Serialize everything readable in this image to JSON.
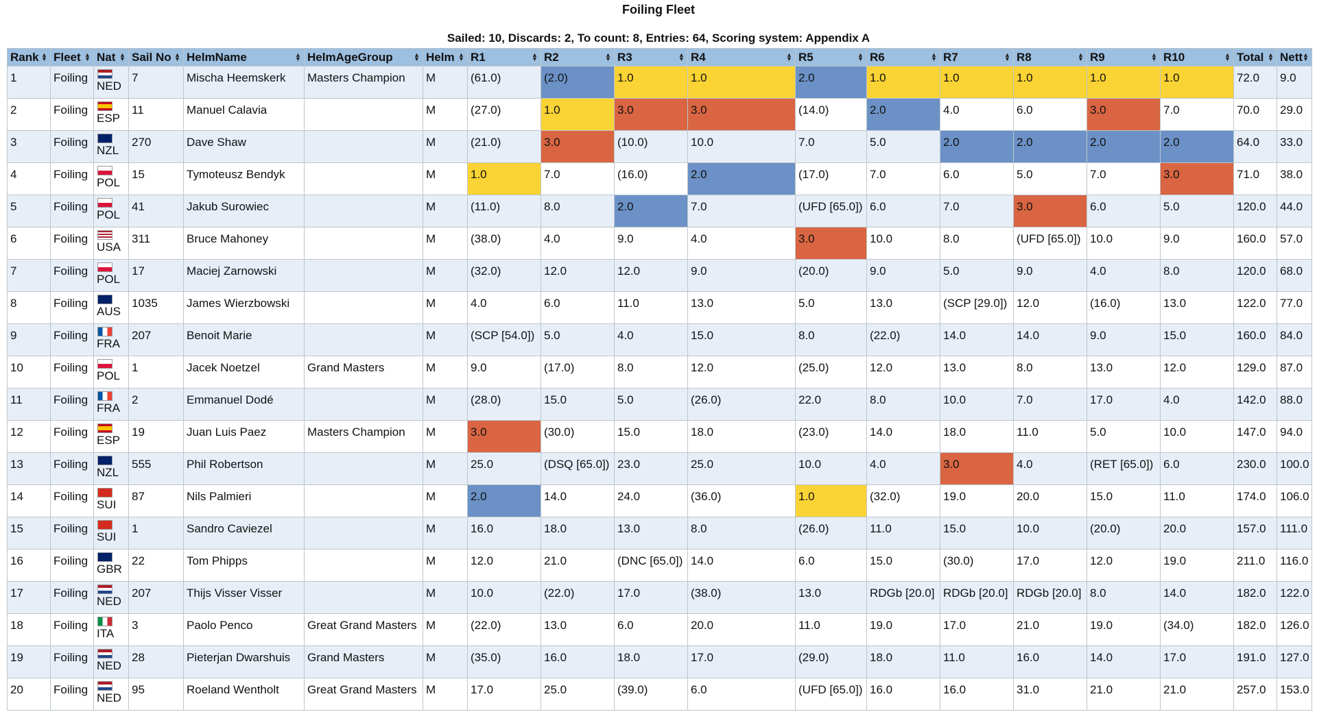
{
  "title": "Foiling Fleet",
  "subtitle": "Sailed: 10, Discards: 2, To count: 8, Entries: 64, Scoring system: Appendix A",
  "colors": {
    "header_bg": "#9dbfe0",
    "row_alt": "#e7eef8",
    "first": "#fad334",
    "second": "#6b91c6",
    "third": "#d96542"
  },
  "columns": [
    "Rank",
    "Fleet",
    "Nat",
    "Sail No",
    "HelmName",
    "HelmAgeGroup",
    "Helm",
    "R1",
    "R2",
    "R3",
    "R4",
    "R5",
    "R6",
    "R7",
    "R8",
    "R9",
    "R10",
    "Total",
    "Nett"
  ],
  "flags": {
    "NED": "linear-gradient(#ae1c28 0 33.3%, #ffffff 33.3% 66.6%, #21468b 66.6%)",
    "ESP": "linear-gradient(#c60b1e 0 25%, #ffc400 25% 75%, #c60b1e 75%)",
    "NZL": "linear-gradient(#012169, #012169)",
    "POL": "linear-gradient(#ffffff 0 50%, #dc143c 50%)",
    "USA": "repeating-linear-gradient(#b22234 0 2px, #ffffff 2px 4px)",
    "AUS": "linear-gradient(#012169, #012169)",
    "FRA": "linear-gradient(90deg, #0055a4 0 33.3%, #ffffff 33.3% 66.6%, #ef4135 66.6%)",
    "SUI": "linear-gradient(#d52b1e, #d52b1e)",
    "GBR": "linear-gradient(#012169, #012169)",
    "ITA": "linear-gradient(90deg, #009246 0 33.3%, #ffffff 33.3% 66.6%, #ce2b37 66.6%)"
  },
  "rows": [
    {
      "rank": "1",
      "fleet": "Foiling",
      "nat": "NED",
      "sail": "7",
      "helm_name": "Mischa Heemskerk",
      "age_group": "Masters Champion",
      "helm": "M",
      "races": [
        "(61.0)",
        "(2.0)",
        "1.0",
        "1.0",
        "2.0",
        "1.0",
        "1.0",
        "1.0",
        "1.0",
        "1.0"
      ],
      "race_colors": [
        "",
        "c2",
        "c1",
        "c1",
        "c2",
        "c1",
        "c1",
        "c1",
        "c1",
        "c1"
      ],
      "total": "72.0",
      "nett": "9.0"
    },
    {
      "rank": "2",
      "fleet": "Foiling",
      "nat": "ESP",
      "sail": "11",
      "helm_name": "Manuel Calavia",
      "age_group": "",
      "helm": "M",
      "races": [
        "(27.0)",
        "1.0",
        "3.0",
        "3.0",
        "(14.0)",
        "2.0",
        "4.0",
        "6.0",
        "3.0",
        "7.0"
      ],
      "race_colors": [
        "",
        "c1",
        "c3",
        "c3",
        "",
        "c2",
        "",
        "",
        "c3",
        ""
      ],
      "total": "70.0",
      "nett": "29.0"
    },
    {
      "rank": "3",
      "fleet": "Foiling",
      "nat": "NZL",
      "sail": "270",
      "helm_name": "Dave Shaw",
      "age_group": "",
      "helm": "M",
      "races": [
        "(21.0)",
        "3.0",
        "(10.0)",
        "10.0",
        "7.0",
        "5.0",
        "2.0",
        "2.0",
        "2.0",
        "2.0"
      ],
      "race_colors": [
        "",
        "c3",
        "",
        "",
        "",
        "",
        "c2",
        "c2",
        "c2",
        "c2"
      ],
      "total": "64.0",
      "nett": "33.0"
    },
    {
      "rank": "4",
      "fleet": "Foiling",
      "nat": "POL",
      "sail": "15",
      "helm_name": "Tymoteusz Bendyk",
      "age_group": "",
      "helm": "M",
      "races": [
        "1.0",
        "7.0",
        "(16.0)",
        "2.0",
        "(17.0)",
        "7.0",
        "6.0",
        "5.0",
        "7.0",
        "3.0"
      ],
      "race_colors": [
        "c1",
        "",
        "",
        "c2",
        "",
        "",
        "",
        "",
        "",
        "c3"
      ],
      "total": "71.0",
      "nett": "38.0"
    },
    {
      "rank": "5",
      "fleet": "Foiling",
      "nat": "POL",
      "sail": "41",
      "helm_name": "Jakub Surowiec",
      "age_group": "",
      "helm": "M",
      "races": [
        "(11.0)",
        "8.0",
        "2.0",
        "7.0",
        "(UFD [65.0])",
        "6.0",
        "7.0",
        "3.0",
        "6.0",
        "5.0"
      ],
      "race_colors": [
        "",
        "",
        "c2",
        "",
        "",
        "",
        "",
        "c3",
        "",
        ""
      ],
      "total": "120.0",
      "nett": "44.0"
    },
    {
      "rank": "6",
      "fleet": "Foiling",
      "nat": "USA",
      "sail": "311",
      "helm_name": "Bruce Mahoney",
      "age_group": "",
      "helm": "M",
      "races": [
        "(38.0)",
        "4.0",
        "9.0",
        "4.0",
        "3.0",
        "10.0",
        "8.0",
        "(UFD [65.0])",
        "10.0",
        "9.0"
      ],
      "race_colors": [
        "",
        "",
        "",
        "",
        "c3",
        "",
        "",
        "",
        "",
        ""
      ],
      "total": "160.0",
      "nett": "57.0"
    },
    {
      "rank": "7",
      "fleet": "Foiling",
      "nat": "POL",
      "sail": "17",
      "helm_name": "Maciej Zarnowski",
      "age_group": "",
      "helm": "M",
      "races": [
        "(32.0)",
        "12.0",
        "12.0",
        "9.0",
        "(20.0)",
        "9.0",
        "5.0",
        "9.0",
        "4.0",
        "8.0"
      ],
      "race_colors": [
        "",
        "",
        "",
        "",
        "",
        "",
        "",
        "",
        "",
        ""
      ],
      "total": "120.0",
      "nett": "68.0"
    },
    {
      "rank": "8",
      "fleet": "Foiling",
      "nat": "AUS",
      "sail": "1035",
      "helm_name": "James Wierzbowski",
      "age_group": "",
      "helm": "M",
      "races": [
        "4.0",
        "6.0",
        "11.0",
        "13.0",
        "5.0",
        "13.0",
        "(SCP [29.0])",
        "12.0",
        "(16.0)",
        "13.0"
      ],
      "race_colors": [
        "",
        "",
        "",
        "",
        "",
        "",
        "",
        "",
        "",
        ""
      ],
      "total": "122.0",
      "nett": "77.0"
    },
    {
      "rank": "9",
      "fleet": "Foiling",
      "nat": "FRA",
      "sail": "207",
      "helm_name": "Benoit Marie",
      "age_group": "",
      "helm": "M",
      "races": [
        "(SCP [54.0])",
        "5.0",
        "4.0",
        "15.0",
        "8.0",
        "(22.0)",
        "14.0",
        "14.0",
        "9.0",
        "15.0"
      ],
      "race_colors": [
        "",
        "",
        "",
        "",
        "",
        "",
        "",
        "",
        "",
        ""
      ],
      "total": "160.0",
      "nett": "84.0"
    },
    {
      "rank": "10",
      "fleet": "Foiling",
      "nat": "POL",
      "sail": "1",
      "helm_name": "Jacek Noetzel",
      "age_group": "Grand Masters",
      "helm": "M",
      "races": [
        "9.0",
        "(17.0)",
        "8.0",
        "12.0",
        "(25.0)",
        "12.0",
        "13.0",
        "8.0",
        "13.0",
        "12.0"
      ],
      "race_colors": [
        "",
        "",
        "",
        "",
        "",
        "",
        "",
        "",
        "",
        ""
      ],
      "total": "129.0",
      "nett": "87.0"
    },
    {
      "rank": "11",
      "fleet": "Foiling",
      "nat": "FRA",
      "sail": "2",
      "helm_name": "Emmanuel Dodé",
      "age_group": "",
      "helm": "M",
      "races": [
        "(28.0)",
        "15.0",
        "5.0",
        "(26.0)",
        "22.0",
        "8.0",
        "10.0",
        "7.0",
        "17.0",
        "4.0"
      ],
      "race_colors": [
        "",
        "",
        "",
        "",
        "",
        "",
        "",
        "",
        "",
        ""
      ],
      "total": "142.0",
      "nett": "88.0"
    },
    {
      "rank": "12",
      "fleet": "Foiling",
      "nat": "ESP",
      "sail": "19",
      "helm_name": "Juan Luis Paez",
      "age_group": "Masters Champion",
      "helm": "M",
      "races": [
        "3.0",
        "(30.0)",
        "15.0",
        "18.0",
        "(23.0)",
        "14.0",
        "18.0",
        "11.0",
        "5.0",
        "10.0"
      ],
      "race_colors": [
        "c3",
        "",
        "",
        "",
        "",
        "",
        "",
        "",
        "",
        ""
      ],
      "total": "147.0",
      "nett": "94.0"
    },
    {
      "rank": "13",
      "fleet": "Foiling",
      "nat": "NZL",
      "sail": "555",
      "helm_name": "Phil Robertson",
      "age_group": "",
      "helm": "M",
      "races": [
        "25.0",
        "(DSQ [65.0])",
        "23.0",
        "25.0",
        "10.0",
        "4.0",
        "3.0",
        "4.0",
        "(RET [65.0])",
        "6.0"
      ],
      "race_colors": [
        "",
        "",
        "",
        "",
        "",
        "",
        "c3",
        "",
        "",
        ""
      ],
      "total": "230.0",
      "nett": "100.0"
    },
    {
      "rank": "14",
      "fleet": "Foiling",
      "nat": "SUI",
      "sail": "87",
      "helm_name": "Nils Palmieri",
      "age_group": "",
      "helm": "M",
      "races": [
        "2.0",
        "14.0",
        "24.0",
        "(36.0)",
        "1.0",
        "(32.0)",
        "19.0",
        "20.0",
        "15.0",
        "11.0"
      ],
      "race_colors": [
        "c2",
        "",
        "",
        "",
        "c1",
        "",
        "",
        "",
        "",
        ""
      ],
      "total": "174.0",
      "nett": "106.0"
    },
    {
      "rank": "15",
      "fleet": "Foiling",
      "nat": "SUI",
      "sail": "1",
      "helm_name": "Sandro Caviezel",
      "age_group": "",
      "helm": "M",
      "races": [
        "16.0",
        "18.0",
        "13.0",
        "8.0",
        "(26.0)",
        "11.0",
        "15.0",
        "10.0",
        "(20.0)",
        "20.0"
      ],
      "race_colors": [
        "",
        "",
        "",
        "",
        "",
        "",
        "",
        "",
        "",
        ""
      ],
      "total": "157.0",
      "nett": "111.0"
    },
    {
      "rank": "16",
      "fleet": "Foiling",
      "nat": "GBR",
      "sail": "22",
      "helm_name": "Tom Phipps",
      "age_group": "",
      "helm": "M",
      "races": [
        "12.0",
        "21.0",
        "(DNC [65.0])",
        "14.0",
        "6.0",
        "15.0",
        "(30.0)",
        "17.0",
        "12.0",
        "19.0"
      ],
      "race_colors": [
        "",
        "",
        "",
        "",
        "",
        "",
        "",
        "",
        "",
        ""
      ],
      "total": "211.0",
      "nett": "116.0"
    },
    {
      "rank": "17",
      "fleet": "Foiling",
      "nat": "NED",
      "sail": "207",
      "helm_name": "Thijs Visser Visser",
      "age_group": "",
      "helm": "M",
      "races": [
        "10.0",
        "(22.0)",
        "17.0",
        "(38.0)",
        "13.0",
        "RDGb [20.0]",
        "RDGb [20.0]",
        "RDGb [20.0]",
        "8.0",
        "14.0"
      ],
      "race_colors": [
        "",
        "",
        "",
        "",
        "",
        "",
        "",
        "",
        "",
        ""
      ],
      "total": "182.0",
      "nett": "122.0"
    },
    {
      "rank": "18",
      "fleet": "Foiling",
      "nat": "ITA",
      "sail": "3",
      "helm_name": "Paolo Penco",
      "age_group": "Great Grand Masters",
      "helm": "M",
      "races": [
        "(22.0)",
        "13.0",
        "6.0",
        "20.0",
        "11.0",
        "19.0",
        "17.0",
        "21.0",
        "19.0",
        "(34.0)"
      ],
      "race_colors": [
        "",
        "",
        "",
        "",
        "",
        "",
        "",
        "",
        "",
        ""
      ],
      "total": "182.0",
      "nett": "126.0"
    },
    {
      "rank": "19",
      "fleet": "Foiling",
      "nat": "NED",
      "sail": "28",
      "helm_name": "Pieterjan Dwarshuis",
      "age_group": "Grand Masters",
      "helm": "M",
      "races": [
        "(35.0)",
        "16.0",
        "18.0",
        "17.0",
        "(29.0)",
        "18.0",
        "11.0",
        "16.0",
        "14.0",
        "17.0"
      ],
      "race_colors": [
        "",
        "",
        "",
        "",
        "",
        "",
        "",
        "",
        "",
        ""
      ],
      "total": "191.0",
      "nett": "127.0"
    },
    {
      "rank": "20",
      "fleet": "Foiling",
      "nat": "NED",
      "sail": "95",
      "helm_name": "Roeland Wentholt",
      "age_group": "Great Grand Masters",
      "helm": "M",
      "races": [
        "17.0",
        "25.0",
        "(39.0)",
        "6.0",
        "(UFD [65.0])",
        "16.0",
        "16.0",
        "31.0",
        "21.0",
        "21.0"
      ],
      "race_colors": [
        "",
        "",
        "",
        "",
        "",
        "",
        "",
        "",
        "",
        ""
      ],
      "total": "257.0",
      "nett": "153.0"
    }
  ]
}
